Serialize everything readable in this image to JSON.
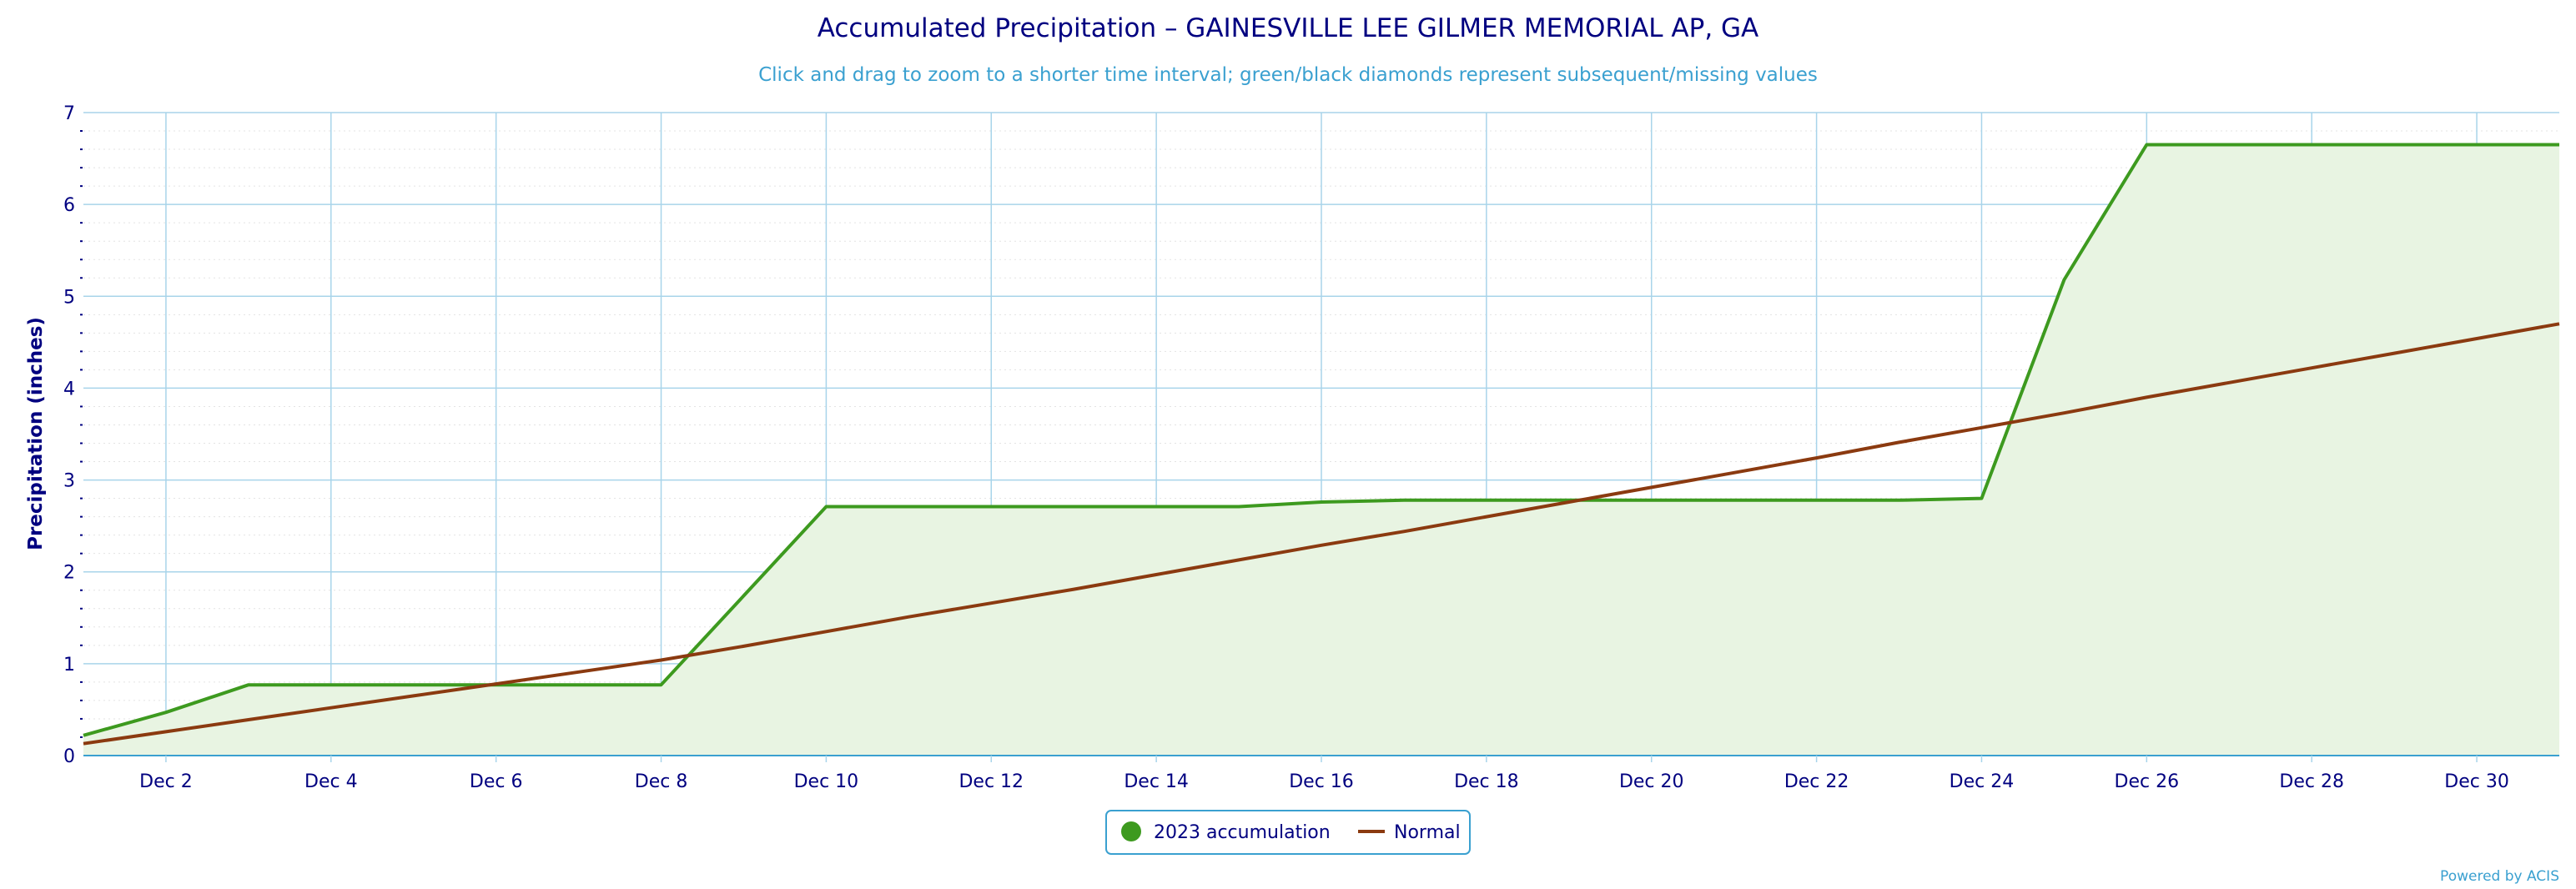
{
  "chart_data": {
    "type": "line",
    "title": "Accumulated Precipitation – GAINESVILLE LEE GILMER MEMORIAL AP, GA",
    "subtitle": "Click and drag to zoom to a shorter time interval; green/black diamonds represent subsequent/missing values",
    "ylabel": "Precipitation (inches)",
    "ylim": [
      0,
      7
    ],
    "yticks": [
      0,
      1,
      2,
      3,
      4,
      5,
      6,
      7
    ],
    "xlim": [
      1,
      31
    ],
    "xticks": [
      2,
      4,
      6,
      8,
      10,
      12,
      14,
      16,
      18,
      20,
      22,
      24,
      26,
      28,
      30
    ],
    "xtick_labels": [
      "Dec 2",
      "Dec 4",
      "Dec 6",
      "Dec 8",
      "Dec 10",
      "Dec 12",
      "Dec 14",
      "Dec 16",
      "Dec 18",
      "Dec 20",
      "Dec 22",
      "Dec 24",
      "Dec 26",
      "Dec 28",
      "Dec 30"
    ],
    "grid": true,
    "legend_position": "bottom-center",
    "series": [
      {
        "name": "2023 accumulation",
        "color": "#3d9a1f",
        "fill": "#e8f4e2",
        "style": "area",
        "x": [
          1,
          2,
          3,
          4,
          5,
          6,
          7,
          8,
          9,
          10,
          11,
          12,
          13,
          14,
          15,
          16,
          17,
          18,
          19,
          20,
          21,
          22,
          23,
          24,
          25,
          26,
          27,
          28,
          29,
          30,
          31
        ],
        "y": [
          0.22,
          0.47,
          0.77,
          0.77,
          0.77,
          0.77,
          0.77,
          0.77,
          1.74,
          2.71,
          2.71,
          2.71,
          2.71,
          2.71,
          2.71,
          2.76,
          2.78,
          2.78,
          2.78,
          2.78,
          2.78,
          2.78,
          2.78,
          2.8,
          5.18,
          6.65,
          6.65,
          6.65,
          6.65,
          6.65,
          6.65
        ]
      },
      {
        "name": "Normal",
        "color": "#8b3a10",
        "style": "line",
        "x": [
          1,
          2,
          3,
          4,
          5,
          6,
          7,
          8,
          9,
          10,
          11,
          12,
          13,
          14,
          15,
          16,
          17,
          18,
          19,
          20,
          21,
          22,
          23,
          24,
          25,
          26,
          27,
          28,
          29,
          30,
          31
        ],
        "y": [
          0.13,
          0.26,
          0.39,
          0.52,
          0.65,
          0.78,
          0.91,
          1.04,
          1.19,
          1.35,
          1.51,
          1.66,
          1.81,
          1.97,
          2.13,
          2.29,
          2.44,
          2.6,
          2.76,
          2.92,
          3.08,
          3.24,
          3.41,
          3.57,
          3.73,
          3.9,
          4.06,
          4.22,
          4.38,
          4.54,
          4.7
        ]
      }
    ]
  },
  "credit": "Powered by ACIS"
}
